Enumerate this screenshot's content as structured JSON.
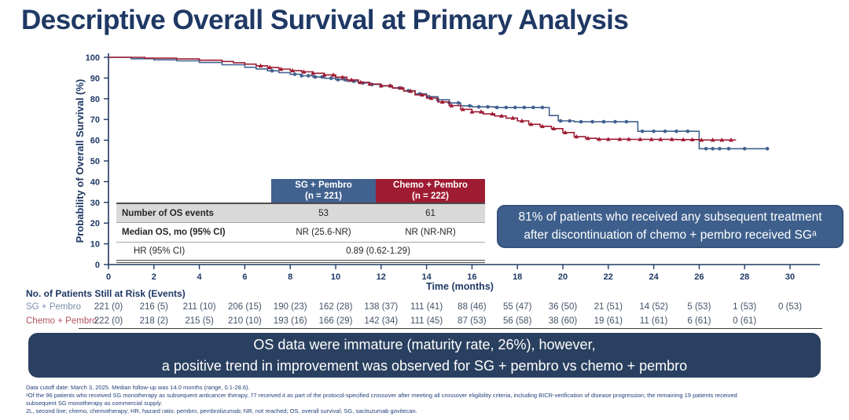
{
  "title": "Descriptive Overall Survival at Primary Analysis",
  "colors": {
    "navy": "#1f3864",
    "sg_blue": "#41618f",
    "chemo_red": "#9e1b32",
    "banner_bg": "#2a4060",
    "callout_bg": "#3e5f8c",
    "shaded_row": "#d9d9d9"
  },
  "chart_data": {
    "type": "line",
    "subtype": "kaplan-meier-step",
    "xlabel": "Time (months)",
    "ylabel": "Probability of Overall Survival (%)",
    "xlim": [
      0,
      30
    ],
    "ylim": [
      0,
      100
    ],
    "x_ticks": [
      0,
      2,
      4,
      6,
      8,
      10,
      12,
      14,
      16,
      18,
      20,
      22,
      24,
      26,
      28,
      30
    ],
    "y_ticks": [
      0,
      10,
      20,
      30,
      40,
      50,
      60,
      70,
      80,
      90,
      100
    ],
    "grid": false,
    "legend_position": "none",
    "series": [
      {
        "name": "SG + Pembro",
        "color": "#41618f",
        "marker": "circle",
        "points": [
          [
            0,
            100
          ],
          [
            1,
            99.3
          ],
          [
            2,
            98.8
          ],
          [
            3,
            98.3
          ],
          [
            4,
            97.5
          ],
          [
            5,
            96.4
          ],
          [
            6,
            95.2
          ],
          [
            6.5,
            94.4
          ],
          [
            7,
            93.5
          ],
          [
            7.5,
            92.6
          ],
          [
            8,
            91.8
          ],
          [
            8.5,
            91.1
          ],
          [
            9,
            90.5
          ],
          [
            9.5,
            89.9
          ],
          [
            10,
            89.2
          ],
          [
            10.5,
            88.4
          ],
          [
            11,
            87.6
          ],
          [
            11.5,
            86.9
          ],
          [
            12,
            86.2
          ],
          [
            12.5,
            85.2
          ],
          [
            13,
            83.9
          ],
          [
            13.5,
            82.4
          ],
          [
            14,
            81
          ],
          [
            14.5,
            79.5
          ],
          [
            15,
            78
          ],
          [
            15.5,
            76.6
          ],
          [
            16,
            76.1
          ],
          [
            17,
            75.8
          ],
          [
            18.5,
            75.8
          ],
          [
            19.4,
            71.9
          ],
          [
            19.8,
            69.3
          ],
          [
            20.5,
            68.9
          ],
          [
            22,
            68.9
          ],
          [
            23.3,
            64.3
          ],
          [
            25,
            64.3
          ],
          [
            26,
            55.9
          ],
          [
            27.5,
            55.9
          ],
          [
            29,
            55.9
          ]
        ],
        "censor_times": [
          7.2,
          8.2,
          8.5,
          8.8,
          9.1,
          9.4,
          9.8,
          10.1,
          10.4,
          10.8,
          11.2,
          11.6,
          12,
          12.4,
          12.8,
          13.2,
          13.7,
          14.1,
          14.5,
          15,
          15.4,
          15.9,
          16.3,
          16.7,
          17.1,
          17.5,
          17.9,
          18.3,
          18.7,
          19.1,
          19.9,
          20.3,
          20.8,
          21.3,
          21.8,
          22.3,
          22.8,
          23.5,
          24,
          24.5,
          25,
          25.5,
          26.3,
          26.6,
          26.9,
          27.3,
          28,
          29
        ]
      },
      {
        "name": "Chemo + Pembro",
        "color": "#9e1b32",
        "marker": "triangle",
        "points": [
          [
            0,
            100
          ],
          [
            1.6,
            99.6
          ],
          [
            3,
            99.2
          ],
          [
            4,
            98.6
          ],
          [
            5,
            98
          ],
          [
            5.5,
            97.4
          ],
          [
            6,
            96.7
          ],
          [
            6.5,
            95.9
          ],
          [
            7,
            95.1
          ],
          [
            7.5,
            94.3
          ],
          [
            8,
            93.6
          ],
          [
            8.5,
            93
          ],
          [
            9,
            92.3
          ],
          [
            9.5,
            91.5
          ],
          [
            10,
            90.4
          ],
          [
            10.5,
            89.1
          ],
          [
            11,
            87.9
          ],
          [
            11.5,
            87.1
          ],
          [
            12,
            86.3
          ],
          [
            12.5,
            85.2
          ],
          [
            13,
            83.7
          ],
          [
            13.5,
            81.9
          ],
          [
            14,
            80.3
          ],
          [
            14.5,
            78.5
          ],
          [
            15,
            76.7
          ],
          [
            15.5,
            74.9
          ],
          [
            16,
            73.7
          ],
          [
            16.5,
            72.7
          ],
          [
            17,
            71.7
          ],
          [
            17.5,
            70.7
          ],
          [
            18,
            69.3
          ],
          [
            18.5,
            67.7
          ],
          [
            19,
            66.7
          ],
          [
            19.5,
            65.6
          ],
          [
            20,
            63.7
          ],
          [
            20.5,
            61.7
          ],
          [
            21,
            60.9
          ],
          [
            21.5,
            60.5
          ],
          [
            23,
            60.4
          ],
          [
            25,
            60.3
          ],
          [
            26,
            60.1
          ],
          [
            27.6,
            60
          ]
        ],
        "censor_times": [
          6.7,
          7.1,
          7.6,
          8.1,
          8.6,
          9,
          9.5,
          9.9,
          10.3,
          10.7,
          11.1,
          11.5,
          12,
          12.4,
          12.9,
          13.3,
          13.8,
          14.2,
          14.7,
          15.1,
          15.6,
          16,
          16.4,
          16.9,
          17.3,
          17.8,
          18.2,
          18.6,
          19.1,
          19.6,
          20.1,
          20.6,
          21.1,
          21.6,
          22,
          22.5,
          22.9,
          23.4,
          23.9,
          24.3,
          24.8,
          25.3,
          25.7,
          26.1,
          26.6,
          27,
          27.4
        ]
      }
    ]
  },
  "stats_table": {
    "col_headers": [
      {
        "label": "SG + Pembro",
        "sub": "(n = 221)"
      },
      {
        "label": "Chemo + Pembro",
        "sub": "(n = 222)"
      }
    ],
    "rows": [
      {
        "label": "Number of OS events",
        "values": [
          "53",
          "61"
        ]
      },
      {
        "label": "Median OS, mo (95% CI)",
        "values": [
          "NR (25.6-NR)",
          "NR (NR-NR)"
        ]
      },
      {
        "label": "HR (95% CI)",
        "span_value": "0.89 (0.62-1.29)"
      }
    ]
  },
  "callout": {
    "lines": [
      "81% of patients who received any subsequent treatment",
      "after discontinuation of chemo + pembro received SGᵃ"
    ]
  },
  "risk_table": {
    "header": "No. of Patients Still at Risk (Events)",
    "rows": [
      {
        "label": "SG + Pembro",
        "values": [
          "221 (0)",
          "216 (5)",
          "211 (10)",
          "206 (15)",
          "190 (23)",
          "162 (28)",
          "138 (37)",
          "111 (41)",
          "88 (46)",
          "55 (47)",
          "36 (50)",
          "21 (51)",
          "14 (52)",
          "5 (53)",
          "1 (53)",
          "0 (53)"
        ]
      },
      {
        "label": "Chemo + Pembro",
        "values": [
          "222 (0)",
          "218 (2)",
          "215 (5)",
          "210 (10)",
          "193 (16)",
          "166 (29)",
          "142 (34)",
          "111 (45)",
          "87 (53)",
          "56 (58)",
          "38 (60)",
          "19 (61)",
          "11 (61)",
          "6 (61)",
          "0 (61)"
        ]
      }
    ]
  },
  "banner": {
    "lines": [
      "OS data were immature (maturity rate, 26%), however,",
      "a positive trend in improvement was observed for SG + pembro vs chemo + pembro"
    ]
  },
  "footnotes": [
    "Data cutoff date: March 3, 2025. Median follow-up was 14.0 months (range, 0.1-28.6).",
    "ᵃOf the 96 patients who received SG monotherapy as subsequent anticancer therapy, 77 received it as part of the protocol-specified crossover after meeting all crossover eligibility criteria, including BICR-verification of disease progression; the remaining 19 patients received",
    "subsequent SG monotherapy as commercial supply.",
    "2L, second line; chemo, chemotherapy; HR, hazard ratio; pembro, pembrolizumab; NR, not reached; OS, overall survival; SG, sacituzumab govitecan."
  ]
}
